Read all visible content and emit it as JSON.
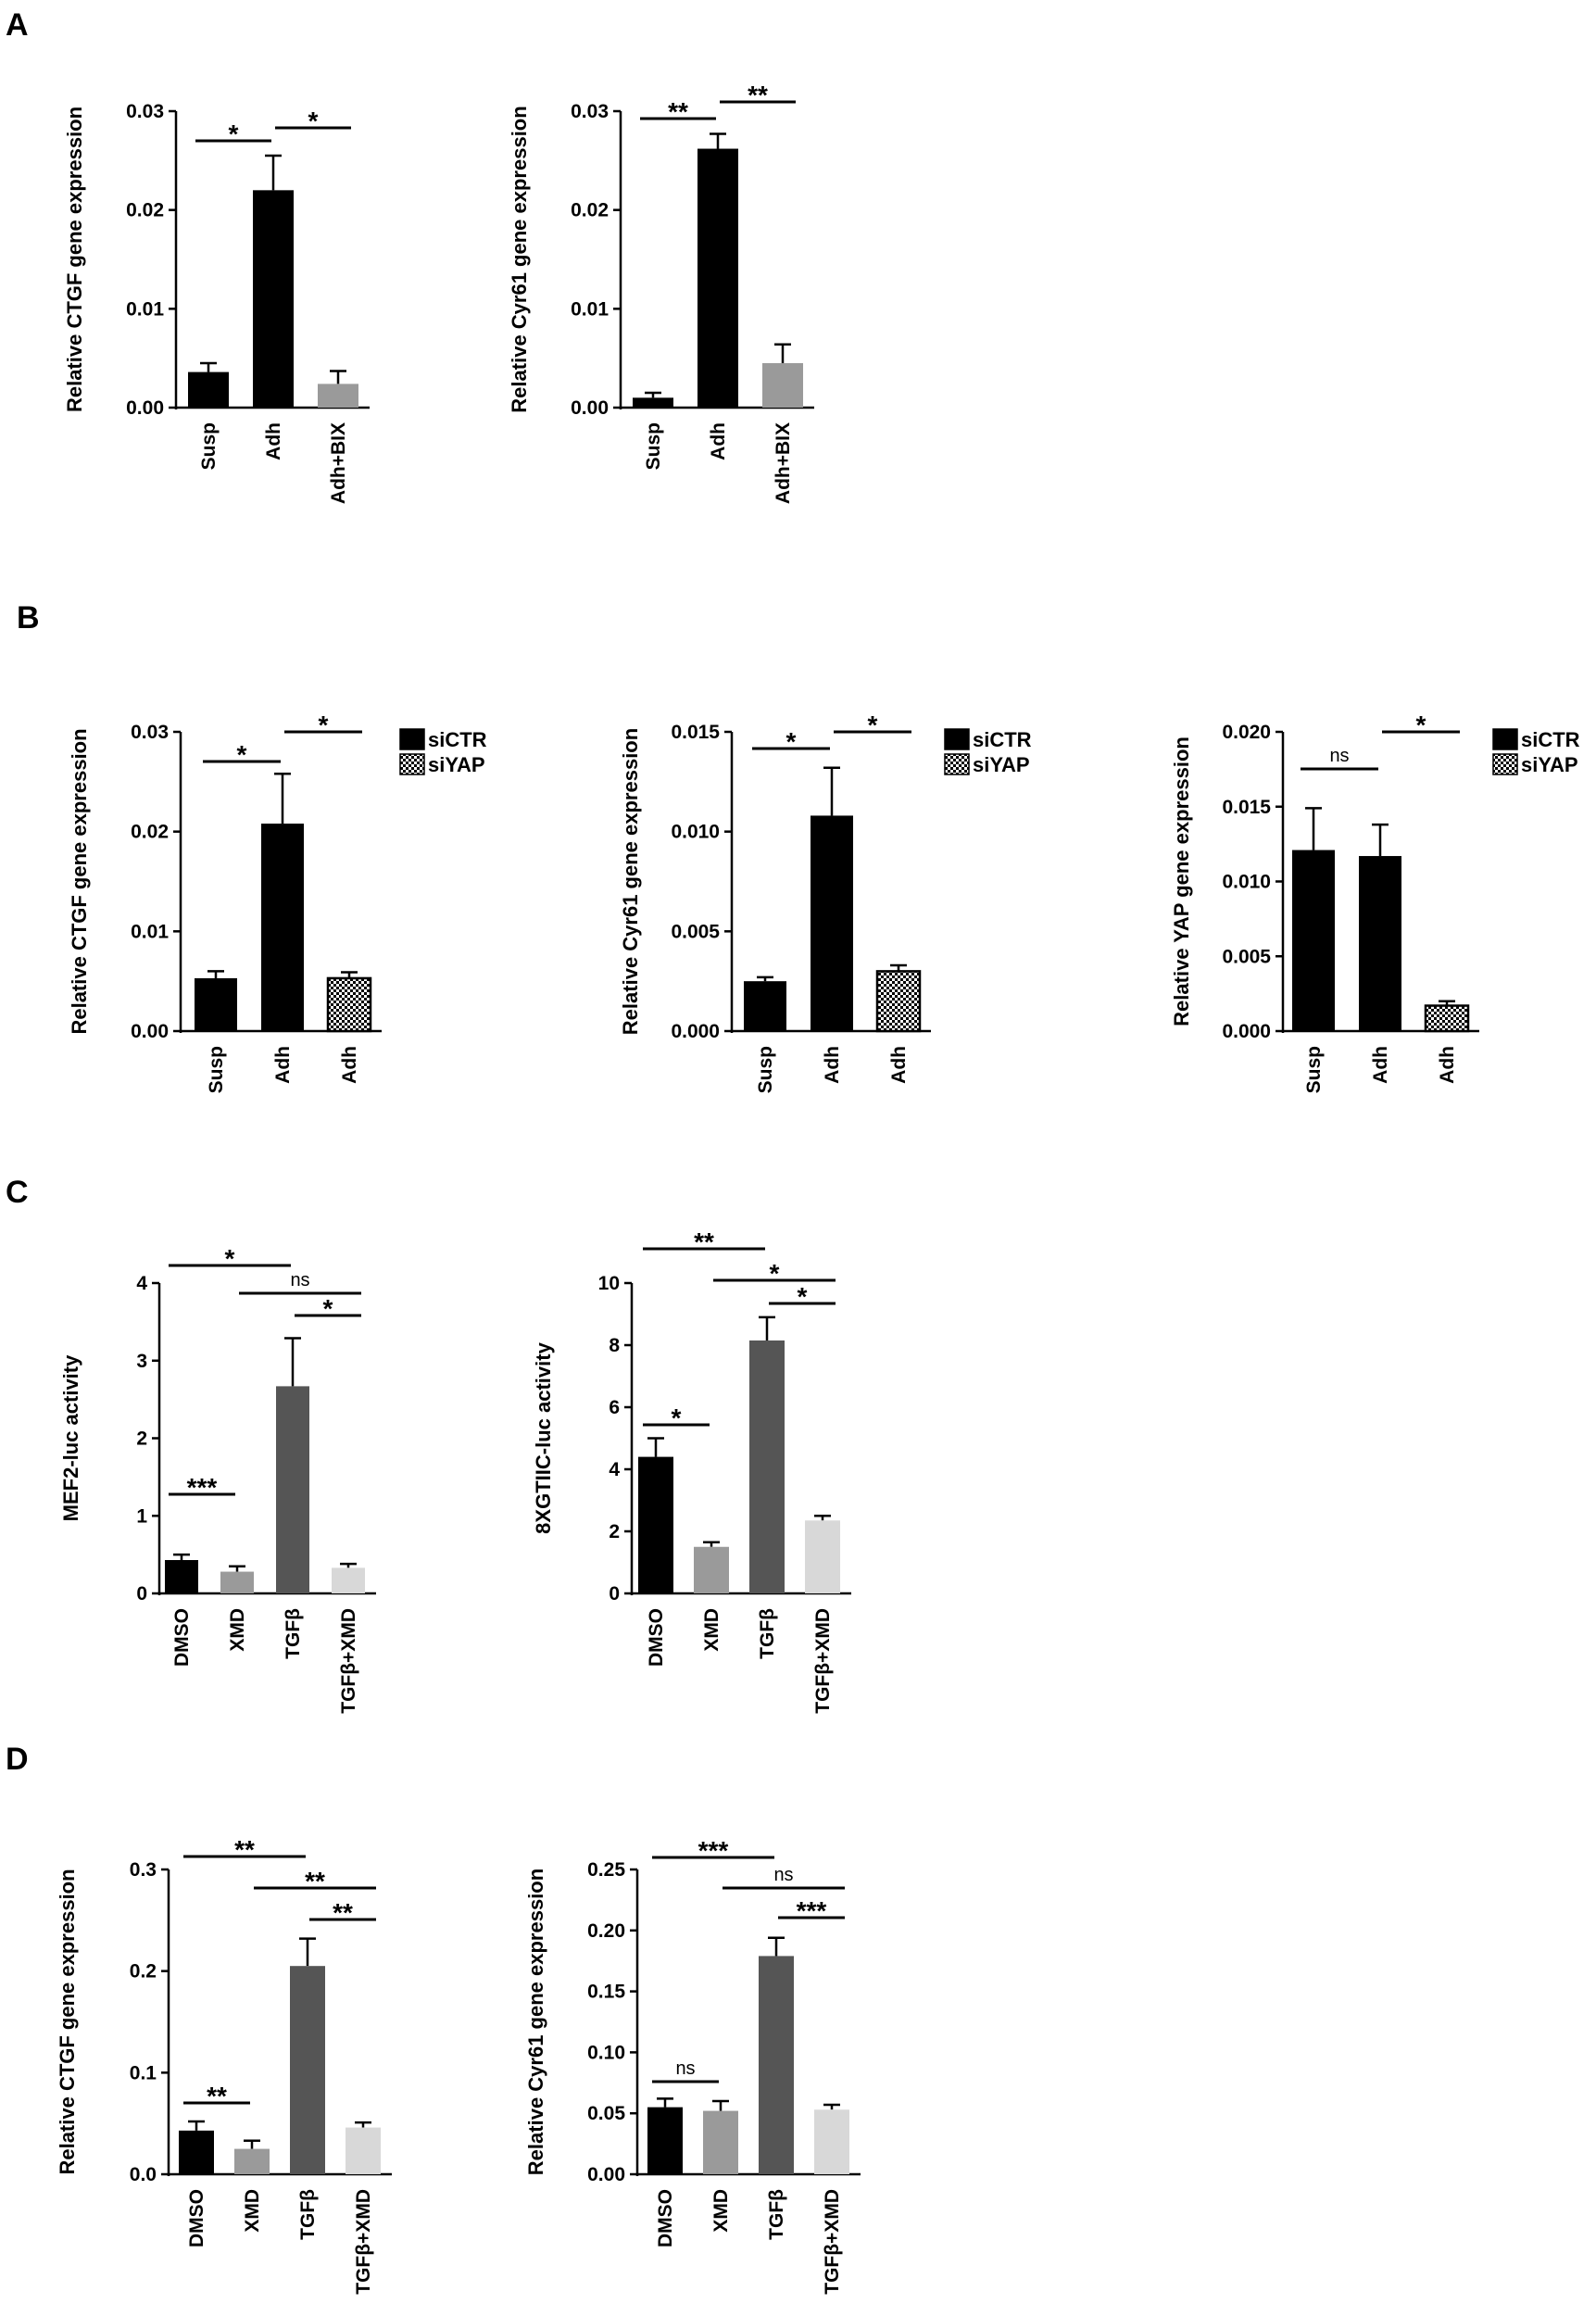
{
  "panels": [
    {
      "letter": "A"
    },
    {
      "letter": "B"
    },
    {
      "letter": "C"
    },
    {
      "letter": "D"
    }
  ],
  "colors": {
    "black": "#000000",
    "dark_gray": "#555555",
    "mid_gray": "#9a9a9a",
    "light_gray": "#d8d8d8",
    "checker": "checker"
  },
  "chart_data": [
    {
      "id": "A1",
      "panel": "A",
      "type": "bar",
      "ylabel": "Relative CTGF gene expression",
      "categories": [
        "Susp",
        "Adh",
        "Adh+BIX"
      ],
      "values": [
        0.0036,
        0.022,
        0.0024
      ],
      "errors": [
        0.0009,
        0.0035,
        0.0013
      ],
      "fills": [
        "black",
        "black",
        "mid_gray"
      ],
      "ylim": [
        0,
        0.03
      ],
      "yticks": [
        {
          "v": 0,
          "label": "0.00"
        },
        {
          "v": 0.01,
          "label": "0.01"
        },
        {
          "v": 0.02,
          "label": "0.02"
        },
        {
          "v": 0.03,
          "label": "0.03"
        }
      ],
      "significance": [
        {
          "from": 0,
          "to": 1,
          "label": "*"
        },
        {
          "from": 1,
          "to": 2,
          "label": "*"
        }
      ]
    },
    {
      "id": "A2",
      "panel": "A",
      "type": "bar",
      "ylabel": "Relative Cyr61 gene expression",
      "categories": [
        "Susp",
        "Adh",
        "Adh+BIX"
      ],
      "values": [
        0.001,
        0.0262,
        0.0045
      ],
      "errors": [
        0.0005,
        0.0015,
        0.0019
      ],
      "fills": [
        "black",
        "black",
        "mid_gray"
      ],
      "ylim": [
        0,
        0.03
      ],
      "yticks": [
        {
          "v": 0,
          "label": "0.00"
        },
        {
          "v": 0.01,
          "label": "0.01"
        },
        {
          "v": 0.02,
          "label": "0.02"
        },
        {
          "v": 0.03,
          "label": "0.03"
        }
      ],
      "significance": [
        {
          "from": 0,
          "to": 1,
          "label": "**"
        },
        {
          "from": 1,
          "to": 2,
          "label": "**"
        }
      ]
    },
    {
      "id": "B1",
      "panel": "B",
      "type": "bar",
      "ylabel": "Relative CTGF gene expression",
      "categories": [
        "Susp",
        "Adh",
        "Adh"
      ],
      "values": [
        0.0053,
        0.0208,
        0.0053
      ],
      "errors": [
        0.0007,
        0.005,
        0.0006
      ],
      "fills": [
        "black",
        "black",
        "checker"
      ],
      "ylim": [
        0,
        0.03
      ],
      "yticks": [
        {
          "v": 0,
          "label": "0.00"
        },
        {
          "v": 0.01,
          "label": "0.01"
        },
        {
          "v": 0.02,
          "label": "0.02"
        },
        {
          "v": 0.03,
          "label": "0.03"
        }
      ],
      "significance": [
        {
          "from": 0,
          "to": 1,
          "label": "*"
        },
        {
          "from": 1,
          "to": 2,
          "label": "*"
        }
      ],
      "legend": [
        {
          "name": "siCTR",
          "fill": "black"
        },
        {
          "name": "siYAP",
          "fill": "checker"
        }
      ]
    },
    {
      "id": "B2",
      "panel": "B",
      "type": "bar",
      "ylabel": "Relative Cyr61 gene expression",
      "categories": [
        "Susp",
        "Adh",
        "Adh"
      ],
      "values": [
        0.0025,
        0.0108,
        0.003
      ],
      "errors": [
        0.0002,
        0.0024,
        0.0003
      ],
      "fills": [
        "black",
        "black",
        "checker"
      ],
      "ylim": [
        0,
        0.015
      ],
      "yticks": [
        {
          "v": 0,
          "label": "0.000"
        },
        {
          "v": 0.005,
          "label": "0.005"
        },
        {
          "v": 0.01,
          "label": "0.010"
        },
        {
          "v": 0.015,
          "label": "0.015"
        }
      ],
      "significance": [
        {
          "from": 0,
          "to": 1,
          "label": "*"
        },
        {
          "from": 1,
          "to": 2,
          "label": "*"
        }
      ],
      "legend": [
        {
          "name": "siCTR",
          "fill": "black"
        },
        {
          "name": "siYAP",
          "fill": "checker"
        }
      ]
    },
    {
      "id": "B3",
      "panel": "B",
      "type": "bar",
      "ylabel": "Relative YAP gene expression",
      "categories": [
        "Susp",
        "Adh",
        "Adh"
      ],
      "values": [
        0.0121,
        0.0117,
        0.0017
      ],
      "errors": [
        0.0028,
        0.0021,
        0.0003
      ],
      "fills": [
        "black",
        "black",
        "checker"
      ],
      "ylim": [
        0,
        0.02
      ],
      "yticks": [
        {
          "v": 0,
          "label": "0.000"
        },
        {
          "v": 0.005,
          "label": "0.005"
        },
        {
          "v": 0.01,
          "label": "0.010"
        },
        {
          "v": 0.015,
          "label": "0.015"
        },
        {
          "v": 0.02,
          "label": "0.020"
        }
      ],
      "significance": [
        {
          "from": 0,
          "to": 1,
          "label": "ns"
        },
        {
          "from": 1,
          "to": 2,
          "label": "*"
        }
      ],
      "legend": [
        {
          "name": "siCTR",
          "fill": "black"
        },
        {
          "name": "siYAP",
          "fill": "checker"
        }
      ]
    },
    {
      "id": "C1",
      "panel": "C",
      "type": "bar",
      "ylabel": "MEF2-luc activity",
      "categories": [
        "DMSO",
        "XMD",
        "TGFβ",
        "TGFβ+XMD"
      ],
      "values": [
        0.43,
        0.28,
        2.67,
        0.33
      ],
      "errors": [
        0.07,
        0.07,
        0.62,
        0.05
      ],
      "fills": [
        "black",
        "mid_gray",
        "dark_gray",
        "light_gray"
      ],
      "ylim": [
        0,
        4
      ],
      "yticks": [
        {
          "v": 0,
          "label": "0"
        },
        {
          "v": 1,
          "label": "1"
        },
        {
          "v": 2,
          "label": "2"
        },
        {
          "v": 3,
          "label": "3"
        },
        {
          "v": 4,
          "label": "4"
        }
      ],
      "significance": [
        {
          "from": 0,
          "to": 2,
          "label": "*"
        },
        {
          "from": 1,
          "to": 3,
          "label": "ns"
        },
        {
          "from": 2,
          "to": 3,
          "label": "*"
        },
        {
          "from": 0,
          "to": 1,
          "label": "***"
        }
      ]
    },
    {
      "id": "C2",
      "panel": "C",
      "type": "bar",
      "ylabel": "8XGTIIC-luc activity",
      "categories": [
        "DMSO",
        "XMD",
        "TGFβ",
        "TGFβ+XMD"
      ],
      "values": [
        4.4,
        1.5,
        8.15,
        2.35
      ],
      "errors": [
        0.6,
        0.15,
        0.75,
        0.15
      ],
      "fills": [
        "black",
        "mid_gray",
        "dark_gray",
        "light_gray"
      ],
      "ylim": [
        0,
        10
      ],
      "yticks": [
        {
          "v": 0,
          "label": "0"
        },
        {
          "v": 2,
          "label": "2"
        },
        {
          "v": 4,
          "label": "4"
        },
        {
          "v": 6,
          "label": "6"
        },
        {
          "v": 8,
          "label": "8"
        },
        {
          "v": 10,
          "label": "10"
        }
      ],
      "significance": [
        {
          "from": 0,
          "to": 2,
          "label": "**"
        },
        {
          "from": 1,
          "to": 3,
          "label": "*"
        },
        {
          "from": 2,
          "to": 3,
          "label": "*"
        },
        {
          "from": 0,
          "to": 1,
          "label": "*"
        }
      ]
    },
    {
      "id": "D1",
      "panel": "D",
      "type": "bar",
      "ylabel": "Relative CTGF gene expression",
      "categories": [
        "DMSO",
        "XMD",
        "TGFβ",
        "TGFβ+XMD"
      ],
      "values": [
        0.043,
        0.025,
        0.205,
        0.046
      ],
      "errors": [
        0.009,
        0.008,
        0.027,
        0.005
      ],
      "fills": [
        "black",
        "mid_gray",
        "dark_gray",
        "light_gray"
      ],
      "ylim": [
        0,
        0.3
      ],
      "yticks": [
        {
          "v": 0,
          "label": "0.0"
        },
        {
          "v": 0.1,
          "label": "0.1"
        },
        {
          "v": 0.2,
          "label": "0.2"
        },
        {
          "v": 0.3,
          "label": "0.3"
        }
      ],
      "significance": [
        {
          "from": 0,
          "to": 2,
          "label": "**"
        },
        {
          "from": 1,
          "to": 3,
          "label": "**"
        },
        {
          "from": 2,
          "to": 3,
          "label": "**"
        },
        {
          "from": 0,
          "to": 1,
          "label": "**"
        }
      ]
    },
    {
      "id": "D2",
      "panel": "D",
      "type": "bar",
      "ylabel": "Relative Cyr61 gene expression",
      "categories": [
        "DMSO",
        "XMD",
        "TGFβ",
        "TGFβ+XMD"
      ],
      "values": [
        0.055,
        0.052,
        0.179,
        0.053
      ],
      "errors": [
        0.007,
        0.008,
        0.015,
        0.004
      ],
      "fills": [
        "black",
        "mid_gray",
        "dark_gray",
        "light_gray"
      ],
      "ylim": [
        0,
        0.25
      ],
      "yticks": [
        {
          "v": 0,
          "label": "0.00"
        },
        {
          "v": 0.05,
          "label": "0.05"
        },
        {
          "v": 0.1,
          "label": "0.10"
        },
        {
          "v": 0.15,
          "label": "0.15"
        },
        {
          "v": 0.2,
          "label": "0.20"
        },
        {
          "v": 0.25,
          "label": "0.25"
        }
      ],
      "significance": [
        {
          "from": 0,
          "to": 2,
          "label": "***"
        },
        {
          "from": 1,
          "to": 3,
          "label": "ns"
        },
        {
          "from": 2,
          "to": 3,
          "label": "***"
        },
        {
          "from": 0,
          "to": 1,
          "label": "ns"
        }
      ]
    }
  ]
}
